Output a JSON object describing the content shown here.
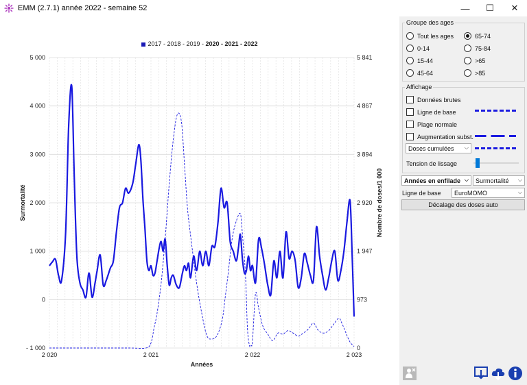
{
  "window": {
    "title": "EMM (2.7.1) année 2022 - semaine 52",
    "minimize": "—",
    "maximize": "☐",
    "close": "✕"
  },
  "legend": {
    "prefix": "2017 - 2018 - 2019 - ",
    "bold": "2020 - 2021 - 2022"
  },
  "colors": {
    "series": "#1a1ae0",
    "grid": "#dcdcdc",
    "accent": "#0078d7"
  },
  "chart_data": {
    "type": "line",
    "xlabel": "Années",
    "ylabel": "Surmortalité",
    "y2label": "Nombre de doses/1 000",
    "xlim": [
      2020.0,
      2023.0
    ],
    "ylim": [
      -1000,
      5000
    ],
    "y2lim": [
      0,
      5841
    ],
    "x_ticks": [
      "2 020",
      "2 021",
      "2 022",
      "2 023"
    ],
    "y_ticks": [
      "5 000",
      "4 000",
      "3 000",
      "2 000",
      "1 000",
      "0",
      "- 1 000"
    ],
    "y2_ticks": [
      "5 841",
      "4 867",
      "3 894",
      "2 920",
      "1 947",
      "973",
      "0"
    ],
    "series": [
      {
        "style": "solid",
        "axis": "left",
        "x": [
          2020.0,
          2020.03,
          2020.06,
          2020.09,
          2020.12,
          2020.16,
          2020.19,
          2020.22,
          2020.245,
          2020.27,
          2020.3,
          2020.33,
          2020.36,
          2020.39,
          2020.42,
          2020.45,
          2020.47,
          2020.5,
          2020.53,
          2020.56,
          2020.6,
          2020.63,
          2020.66,
          2020.69,
          2020.72,
          2020.75,
          2020.78,
          2020.82,
          2020.85,
          2020.88,
          2020.9,
          2020.92,
          2020.94,
          2020.96,
          2020.98,
          2021.0,
          2021.02,
          2021.04,
          2021.06,
          2021.08,
          2021.1,
          2021.12,
          2021.14,
          2021.16,
          2021.18,
          2021.2,
          2021.22,
          2021.25,
          2021.28,
          2021.31,
          2021.33,
          2021.35,
          2021.37,
          2021.39,
          2021.42,
          2021.45,
          2021.48,
          2021.51,
          2021.54,
          2021.57,
          2021.6,
          2021.63,
          2021.66,
          2021.69,
          2021.72,
          2021.75,
          2021.78,
          2021.81,
          2021.84,
          2021.86,
          2021.88,
          2021.9,
          2021.92,
          2021.94,
          2021.96,
          2021.98,
          2022.0,
          2022.03,
          2022.06,
          2022.09,
          2022.12,
          2022.15,
          2022.18,
          2022.21,
          2022.24,
          2022.27,
          2022.3,
          2022.33,
          2022.36,
          2022.39,
          2022.42,
          2022.45,
          2022.48,
          2022.51,
          2022.54,
          2022.57,
          2022.6,
          2022.63,
          2022.66,
          2022.69,
          2022.72,
          2022.75,
          2022.78,
          2022.81,
          2022.84,
          2022.87,
          2022.9,
          2022.93,
          2022.96,
          2022.98,
          2023.0
        ],
        "y": [
          700,
          780,
          830,
          500,
          400,
          1400,
          3600,
          4400,
          2500,
          900,
          350,
          200,
          50,
          550,
          50,
          350,
          600,
          920,
          300,
          400,
          650,
          800,
          1400,
          1900,
          2000,
          2300,
          2200,
          2400,
          2800,
          3200,
          2900,
          2100,
          1500,
          800,
          600,
          700,
          500,
          550,
          800,
          1050,
          1200,
          1000,
          1250,
          700,
          300,
          450,
          500,
          300,
          250,
          550,
          700,
          600,
          750,
          450,
          900,
          600,
          1000,
          700,
          1000,
          700,
          1100,
          1100,
          1600,
          2300,
          1900,
          2000,
          1200,
          1000,
          800,
          1050,
          1350,
          850,
          550,
          600,
          900,
          600,
          700,
          350,
          1250,
          1050,
          700,
          300,
          100,
          800,
          450,
          1000,
          450,
          1400,
          850,
          1000,
          800,
          250,
          450,
          950,
          750,
          500,
          400,
          1500,
          900,
          500,
          200,
          450,
          800,
          1000,
          400,
          600,
          1000,
          1600,
          2050,
          1000,
          -350
        ]
      },
      {
        "style": "dashed",
        "axis": "right",
        "x": [
          2020.0,
          2020.2,
          2020.4,
          2020.6,
          2020.8,
          2020.95,
          2021.0,
          2021.03,
          2021.06,
          2021.1,
          2021.14,
          2021.18,
          2021.22,
          2021.26,
          2021.3,
          2021.33,
          2021.36,
          2021.4,
          2021.45,
          2021.5,
          2021.55,
          2021.6,
          2021.65,
          2021.7,
          2021.73,
          2021.76,
          2021.8,
          2021.84,
          2021.88,
          2021.9,
          2021.93,
          2021.95,
          2021.97,
          2021.985,
          2022.0,
          2022.03,
          2022.06,
          2022.1,
          2022.15,
          2022.2,
          2022.25,
          2022.3,
          2022.35,
          2022.4,
          2022.45,
          2022.5,
          2022.55,
          2022.6,
          2022.65,
          2022.7,
          2022.75,
          2022.8,
          2022.85,
          2022.88,
          2022.92,
          2022.96,
          2023.0
        ],
        "y": [
          0,
          0,
          0,
          0,
          0,
          0,
          100,
          400,
          700,
          1300,
          2200,
          3300,
          4200,
          4700,
          4550,
          3700,
          2800,
          2100,
          1300,
          700,
          250,
          180,
          250,
          550,
          1000,
          1500,
          2200,
          2550,
          2700,
          2300,
          1500,
          400,
          50,
          50,
          150,
          1100,
          800,
          450,
          280,
          150,
          300,
          280,
          350,
          300,
          240,
          300,
          380,
          500,
          350,
          300,
          350,
          480,
          600,
          500,
          300,
          120,
          30
        ]
      }
    ]
  },
  "panel": {
    "age_group": {
      "title": "Groupe des ages",
      "options": [
        "Tout les ages",
        "65-74",
        "0-14",
        "75-84",
        "15-44",
        ">65",
        "45-64",
        ">85"
      ],
      "selected": "65-74"
    },
    "display": {
      "title": "Affichage",
      "raw": "Données brutes",
      "baseline": "Ligne de base",
      "normal_range": "Plage normale",
      "subst_increase": "Augmentation subst.",
      "cumulative_select": "Doses cumulées",
      "smoothing": "Tension de lissage",
      "smoothing_level": 0.05
    },
    "mode_select": "Années en enfilade",
    "metric_select": "Surmortalité",
    "baseline_label": "Ligne de base",
    "baseline_select": "EuroMOMO",
    "auto_offset_button": "Décalage des doses auto"
  }
}
